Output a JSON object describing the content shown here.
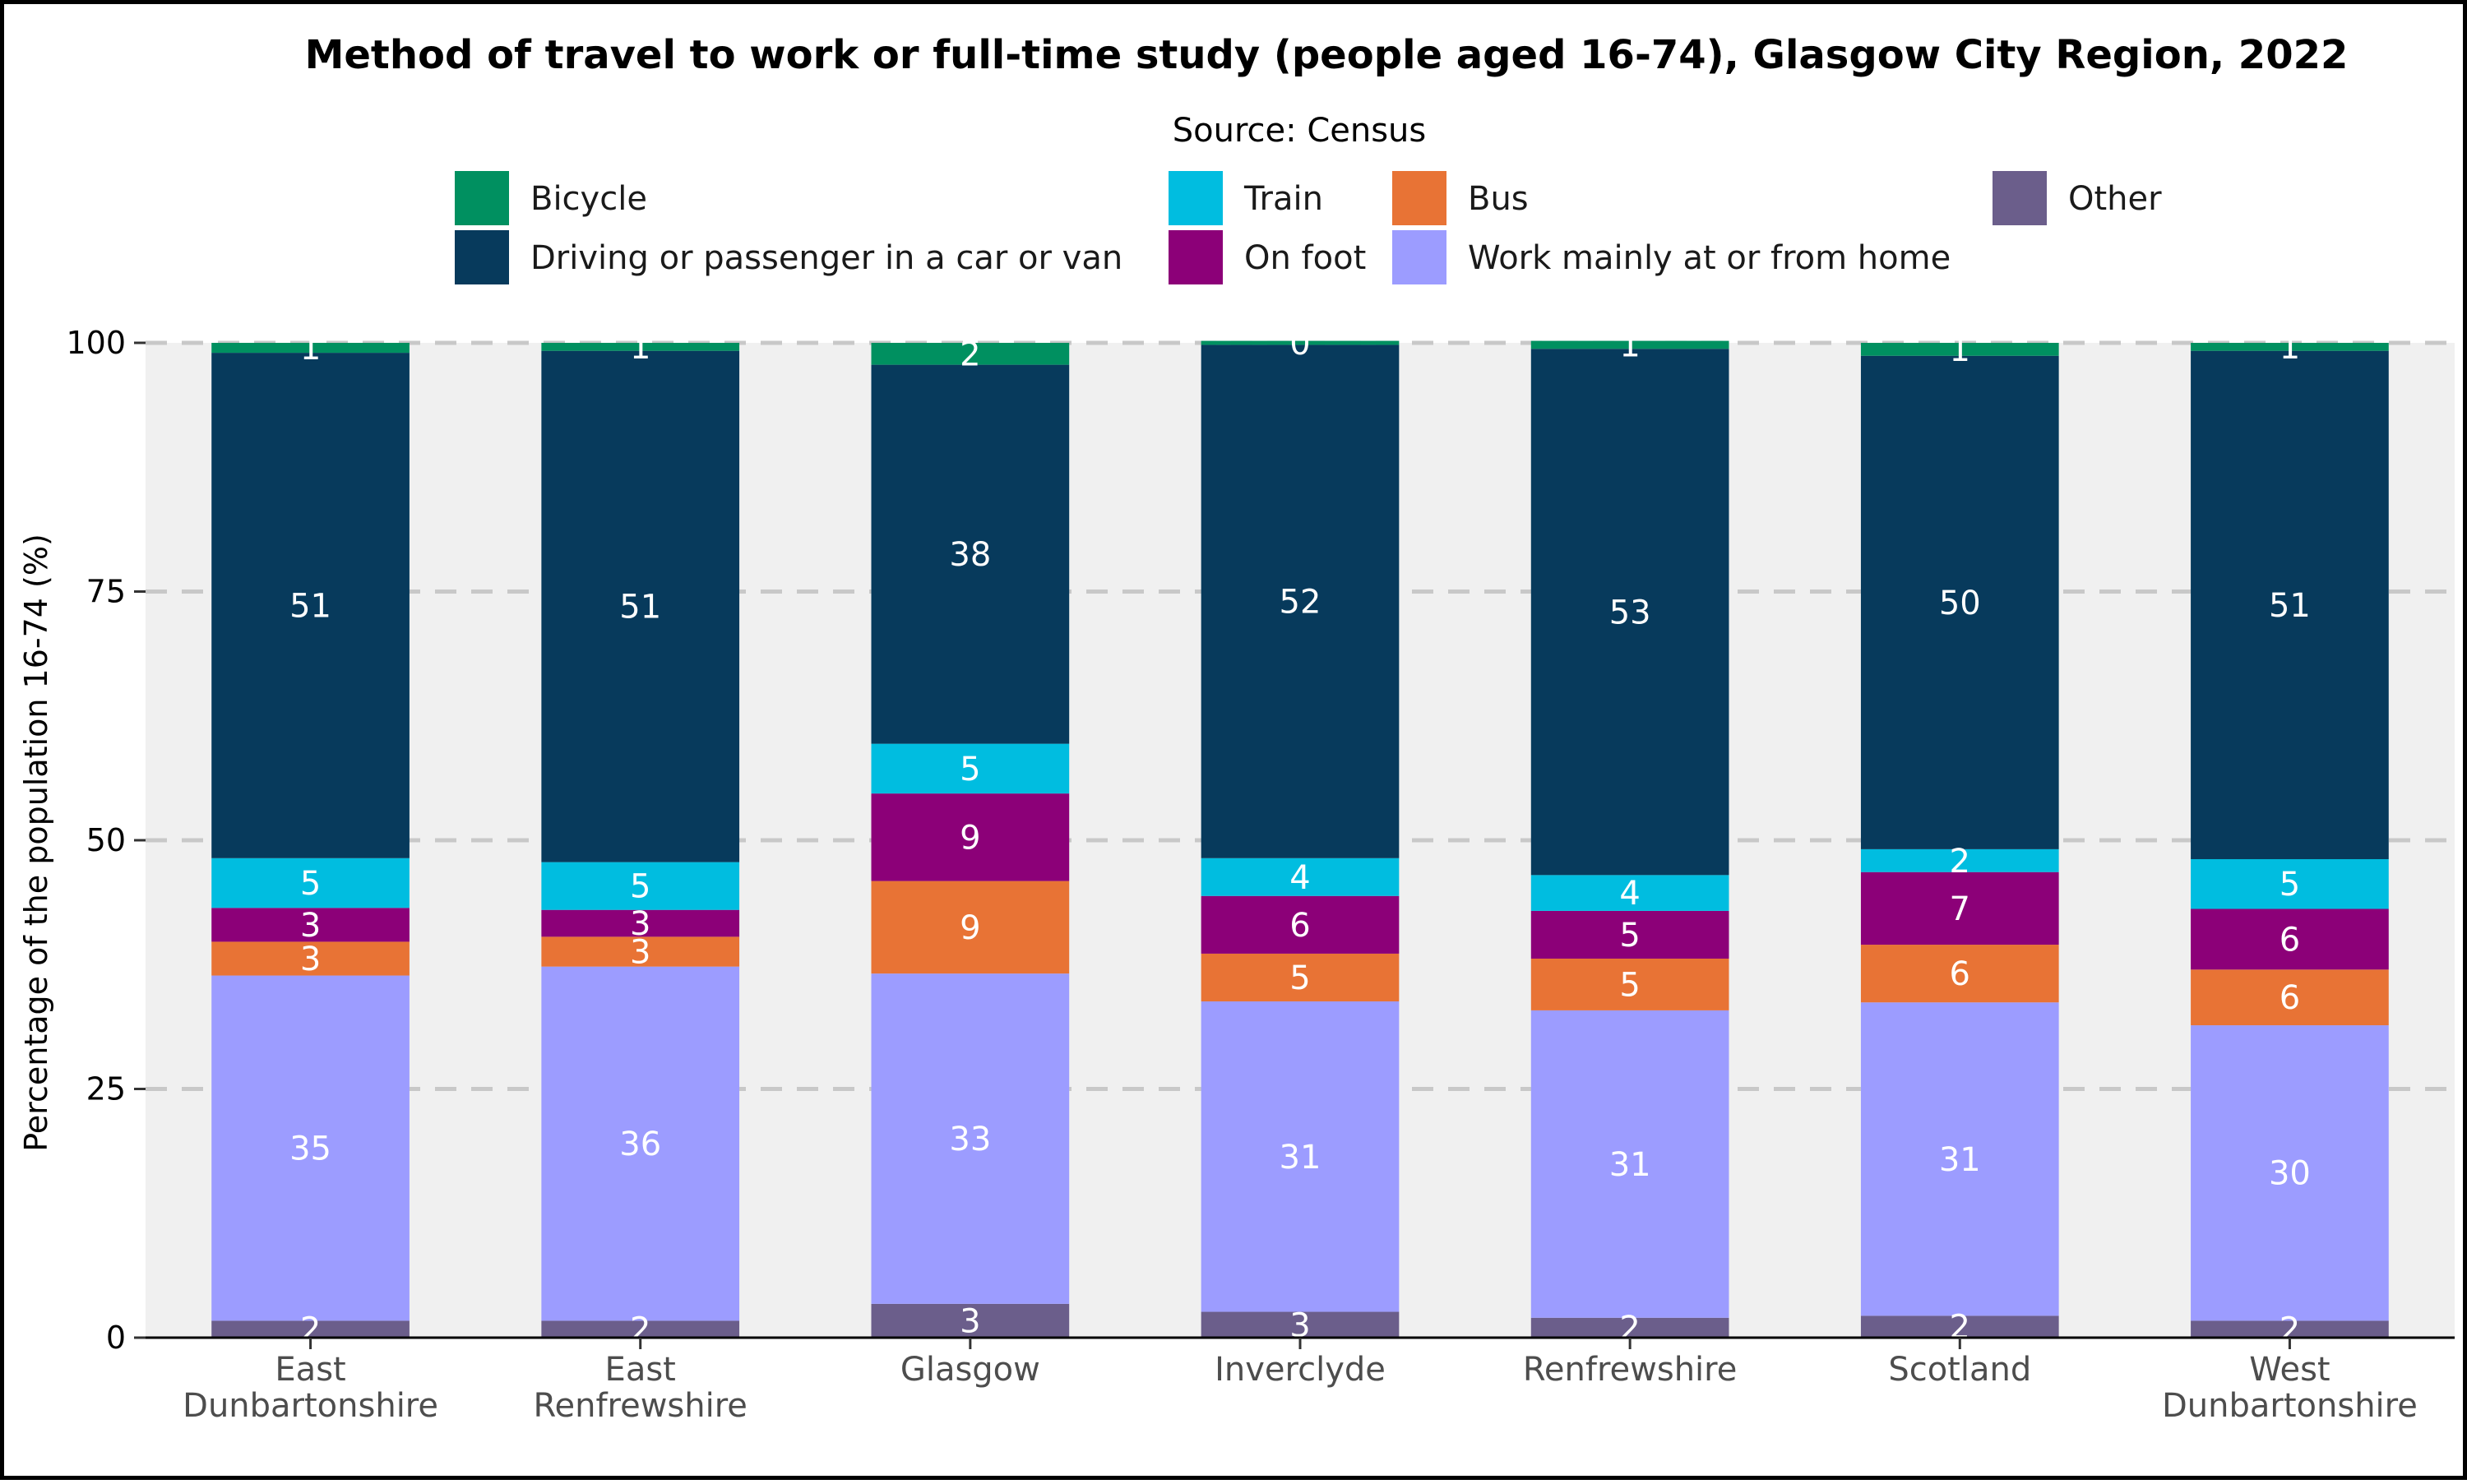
{
  "chart_data": {
    "type": "bar",
    "stacked": true,
    "title": "Method of travel to work or full-time study (people aged 16-74), Glasgow City Region, 2022",
    "subtitle": "Source: Census",
    "xlabel": "",
    "ylabel": "Percentage of the population 16-74 (%)",
    "ylim": [
      0,
      100
    ],
    "yticks": [
      0,
      25,
      50,
      75,
      100
    ],
    "grid": "horizontal dashed",
    "legend_position": "top",
    "categories": [
      "East Dunbartonshire",
      "East Renfrewshire",
      "Glasgow",
      "Inverclyde",
      "Renfrewshire",
      "Scotland",
      "West Dunbartonshire"
    ],
    "category_lines": [
      [
        "East",
        "Dunbartonshire"
      ],
      [
        "East",
        "Renfrewshire"
      ],
      [
        "Glasgow"
      ],
      [
        "Inverclyde"
      ],
      [
        "Renfrewshire"
      ],
      [
        "Scotland"
      ],
      [
        "West",
        "Dunbartonshire"
      ]
    ],
    "legend_order": [
      "Bicycle",
      "Driving or passenger in a car or van",
      "Train",
      "On foot",
      "Bus",
      "Work mainly at or from home",
      "Other"
    ],
    "series": [
      {
        "name": "Other",
        "color": "#6b5e8b",
        "values": [
          1.7,
          1.7,
          3.4,
          2.6,
          2.0,
          2.2,
          1.7
        ],
        "labels": [
          "2",
          "2",
          "3",
          "3",
          "2",
          "2",
          "2"
        ]
      },
      {
        "name": "Work mainly at or from home",
        "color": "#9c9cff",
        "values": [
          34.7,
          35.6,
          33.2,
          31.2,
          30.9,
          31.5,
          29.7
        ],
        "labels": [
          "35",
          "36",
          "33",
          "31",
          "31",
          "31",
          "30"
        ]
      },
      {
        "name": "Bus",
        "color": "#e87335",
        "values": [
          3.4,
          3.0,
          9.3,
          4.8,
          5.2,
          5.8,
          5.6
        ],
        "labels": [
          "3",
          "3",
          "9",
          "5",
          "5",
          "6",
          "6"
        ]
      },
      {
        "name": "On foot",
        "color": "#8c0078",
        "values": [
          3.4,
          2.7,
          8.8,
          5.8,
          4.8,
          7.3,
          6.1
        ],
        "labels": [
          "3",
          "3",
          "9",
          "6",
          "5",
          "7",
          "6"
        ]
      },
      {
        "name": "Train",
        "color": "#00bde0",
        "values": [
          5.0,
          4.8,
          5.0,
          3.8,
          3.6,
          2.3,
          5.0
        ],
        "labels": [
          "5",
          "5",
          "5",
          "4",
          "4",
          "2",
          "5"
        ]
      },
      {
        "name": "Driving or passenger in a car or van",
        "color": "#073a5c",
        "values": [
          50.8,
          51.4,
          38.1,
          51.6,
          52.9,
          49.6,
          51.1
        ],
        "labels": [
          "51",
          "51",
          "38",
          "52",
          "53",
          "50",
          "51"
        ]
      },
      {
        "name": "Bicycle",
        "color": "#009060",
        "values": [
          1.0,
          0.8,
          2.2,
          0.4,
          0.8,
          1.3,
          0.8
        ],
        "labels": [
          "1",
          "1",
          "2",
          "0",
          "1",
          "1",
          "1"
        ]
      }
    ]
  },
  "colors": {
    "panel_background": "#f0f0f0",
    "gridline": "#c8c8c8"
  }
}
